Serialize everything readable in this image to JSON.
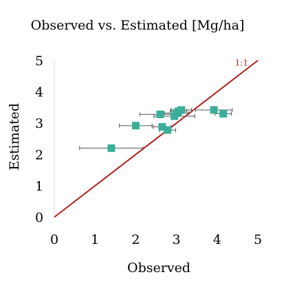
{
  "chart_data": {
    "type": "scatter",
    "title": "Observed vs. Estimated [Mg/ha]",
    "xlabel": "Observed",
    "ylabel": "Estimated",
    "xlim": [
      0,
      5
    ],
    "ylim": [
      0,
      5
    ],
    "x_ticks": [
      "0",
      "1",
      "2",
      "3",
      "4",
      "5"
    ],
    "y_ticks": [
      "0",
      "1",
      "2",
      "3",
      "4",
      "5"
    ],
    "grid": false,
    "marker_color": "#3aae9a",
    "reference_line": {
      "label": "1:1",
      "color": "#b01c1c",
      "from": [
        0,
        0
      ],
      "to": [
        5,
        5
      ]
    },
    "points": [
      {
        "x": 1.4,
        "y": 2.2,
        "xerr": 0.78
      },
      {
        "x": 2.0,
        "y": 2.92,
        "xerr": 0.4
      },
      {
        "x": 2.6,
        "y": 3.28,
        "xerr": 0.5
      },
      {
        "x": 2.65,
        "y": 2.88,
        "xerr": 0.22
      },
      {
        "x": 2.78,
        "y": 2.78,
        "xerr": 0.2
      },
      {
        "x": 2.95,
        "y": 3.22,
        "xerr": 0.5
      },
      {
        "x": 3.0,
        "y": 3.32,
        "xerr": 0.3
      },
      {
        "x": 3.05,
        "y": 3.38,
        "xerr": 0.2
      },
      {
        "x": 3.12,
        "y": 3.42,
        "xerr": 0.25
      },
      {
        "x": 3.92,
        "y": 3.42,
        "xerr": 0.45
      },
      {
        "x": 4.15,
        "y": 3.3,
        "xerr": 0.2
      }
    ]
  }
}
